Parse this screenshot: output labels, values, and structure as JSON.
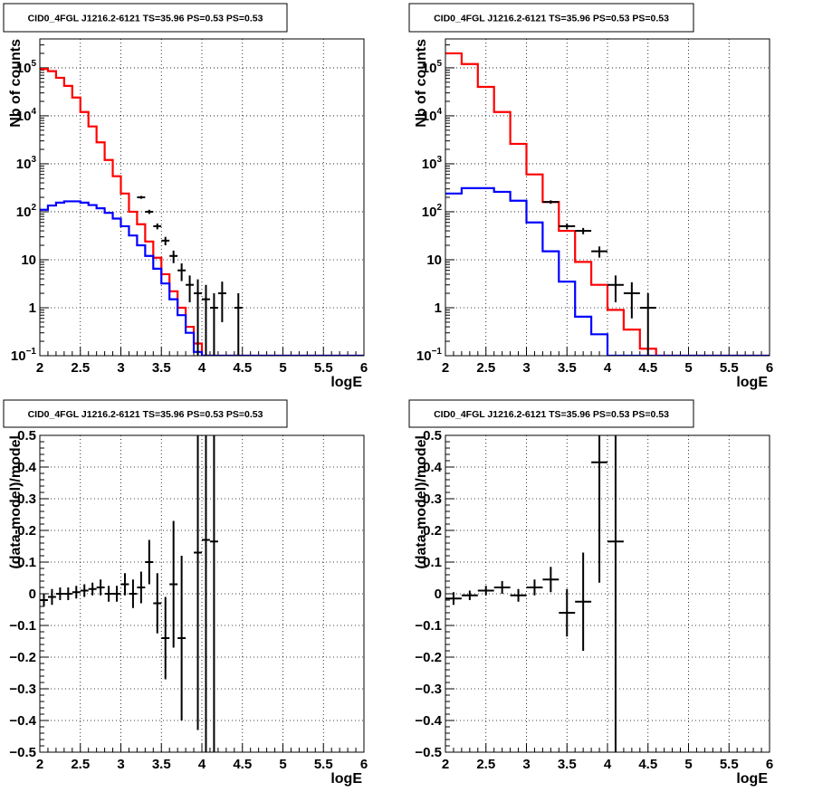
{
  "chart_data": [
    {
      "type": "line",
      "title": "CID0_4FGL J1216.2-6121 TS=35.96 PS=0.53 PS=0.53",
      "xlabel": "logE",
      "ylabel": "Nb of counts",
      "xlim": [
        2,
        6
      ],
      "ylim": [
        0.1,
        400000
      ],
      "yscale": "log",
      "grid": true,
      "x_ticks": [
        "2",
        "2.5",
        "3",
        "3.5",
        "4",
        "4.5",
        "5",
        "5.5",
        "6"
      ],
      "y_ticks": [
        {
          "value": 0.1,
          "label": "10",
          "sup": "−1"
        },
        {
          "value": 1,
          "label": "1",
          "sup": ""
        },
        {
          "value": 10,
          "label": "10",
          "sup": ""
        },
        {
          "value": 100,
          "label": "10",
          "sup": "2"
        },
        {
          "value": 1000,
          "label": "10",
          "sup": "3"
        },
        {
          "value": 10000,
          "label": "10",
          "sup": "4"
        },
        {
          "value": 100000,
          "label": "10",
          "sup": "5"
        }
      ],
      "bin_width": 0.1,
      "series": [
        {
          "color": "#ff0000",
          "kind": "hist",
          "edges_start": 2.0,
          "values": [
            95000,
            85000,
            62000,
            42000,
            24000,
            12000,
            6000,
            2800,
            1200,
            550,
            240,
            100,
            55,
            24,
            11,
            5,
            2.2,
            1.0,
            0.4,
            0.18,
            0.1,
            0.1,
            0.1,
            0.1,
            0.1,
            0.1,
            0.1,
            0.1,
            0.1,
            0.1,
            0.1,
            0.1,
            0.1,
            0.1,
            0.1,
            0.1,
            0.1,
            0.1,
            0.1,
            0.1
          ]
        },
        {
          "color": "#0000ff",
          "kind": "hist",
          "edges_start": 2.0,
          "values": [
            110,
            135,
            155,
            165,
            165,
            155,
            138,
            118,
            95,
            72,
            50,
            32,
            20,
            12,
            6.5,
            3.2,
            1.5,
            0.7,
            0.3,
            0.12,
            0.1,
            0.1,
            0.1,
            0.1,
            0.1,
            0.1,
            0.1,
            0.1,
            0.1,
            0.1,
            0.1,
            0.1,
            0.1,
            0.1,
            0.1,
            0.1,
            0.1,
            0.1,
            0.1,
            0.1
          ]
        },
        {
          "color": "#000000",
          "kind": "points",
          "x": [
            3.25,
            3.35,
            3.45,
            3.55,
            3.65,
            3.75,
            3.85,
            3.95,
            4.05,
            4.15,
            4.25,
            4.45
          ],
          "y": [
            200,
            100,
            50,
            25,
            12,
            6,
            3,
            2,
            1.5,
            1,
            2,
            1
          ],
          "err_lo": [
            14,
            10,
            7,
            5,
            3.5,
            2.4,
            1.7,
            1.9,
            1.5,
            1,
            1.5,
            1
          ],
          "err_hi": [
            14,
            10,
            7,
            5,
            3.5,
            2.4,
            1.7,
            1.9,
            1.5,
            1,
            1.5,
            1
          ]
        }
      ]
    },
    {
      "type": "line",
      "title": "CID0_4FGL J1216.2-6121 TS=35.96 PS=0.53 PS=0.53",
      "xlabel": "logE",
      "ylabel": "Nb of counts",
      "xlim": [
        2,
        6
      ],
      "ylim": [
        0.1,
        400000
      ],
      "yscale": "log",
      "grid": true,
      "x_ticks": [
        "2",
        "2.5",
        "3",
        "3.5",
        "4",
        "4.5",
        "5",
        "5.5",
        "6"
      ],
      "y_ticks": [
        {
          "value": 0.1,
          "label": "10",
          "sup": "−1"
        },
        {
          "value": 1,
          "label": "1",
          "sup": ""
        },
        {
          "value": 10,
          "label": "10",
          "sup": ""
        },
        {
          "value": 100,
          "label": "10",
          "sup": "2"
        },
        {
          "value": 1000,
          "label": "10",
          "sup": "3"
        },
        {
          "value": 10000,
          "label": "10",
          "sup": "4"
        },
        {
          "value": 100000,
          "label": "10",
          "sup": "5"
        }
      ],
      "bin_width": 0.2,
      "series": [
        {
          "color": "#ff0000",
          "kind": "hist",
          "edges_start": 2.0,
          "values": [
            200000,
            120000,
            40000,
            12000,
            2600,
            600,
            160,
            40,
            9,
            3,
            0.9,
            0.35,
            0.14,
            0.1,
            0.1,
            0.1,
            0.1,
            0.1,
            0.1,
            0.1
          ]
        },
        {
          "color": "#0000ff",
          "kind": "hist",
          "edges_start": 2.0,
          "values": [
            240,
            310,
            310,
            260,
            170,
            60,
            15,
            3.5,
            0.65,
            0.28,
            0.1,
            0.1,
            0.1,
            0.1,
            0.1,
            0.1,
            0.1,
            0.1,
            0.1,
            0.1
          ]
        },
        {
          "color": "#000000",
          "kind": "points",
          "x": [
            3.3,
            3.5,
            3.7,
            3.9,
            4.1,
            4.3,
            4.5
          ],
          "y": [
            160,
            50,
            40,
            15,
            3,
            2,
            1
          ],
          "err_lo": [
            13,
            7,
            6,
            3.9,
            1.7,
            1.4,
            1
          ],
          "err_hi": [
            13,
            7,
            6,
            3.9,
            1.7,
            1.4,
            1
          ]
        }
      ]
    },
    {
      "type": "scatter",
      "title": "CID0_4FGL J1216.2-6121 TS=35.96 PS=0.53 PS=0.53",
      "xlabel": "logE",
      "ylabel": "(data-model)/model",
      "xlim": [
        2,
        6
      ],
      "ylim": [
        -0.5,
        0.5
      ],
      "yscale": "linear",
      "grid": true,
      "x_ticks": [
        "2",
        "2.5",
        "3",
        "3.5",
        "4",
        "4.5",
        "5",
        "5.5",
        "6"
      ],
      "y_ticks": [
        {
          "value": -0.5,
          "label": "−0.5"
        },
        {
          "value": -0.4,
          "label": "−0.4"
        },
        {
          "value": -0.3,
          "label": "−0.3"
        },
        {
          "value": -0.2,
          "label": "−0.2"
        },
        {
          "value": -0.1,
          "label": "−0.1"
        },
        {
          "value": 0,
          "label": "0"
        },
        {
          "value": 0.1,
          "label": "0.1"
        },
        {
          "value": 0.2,
          "label": "0.2"
        },
        {
          "value": 0.3,
          "label": "0.3"
        },
        {
          "value": 0.4,
          "label": "0.4"
        },
        {
          "value": 0.5,
          "label": "0.5"
        }
      ],
      "series": [
        {
          "color": "#000000",
          "kind": "points",
          "half_width": 0.05,
          "x": [
            2.05,
            2.15,
            2.25,
            2.35,
            2.45,
            2.55,
            2.65,
            2.75,
            2.85,
            2.95,
            3.05,
            3.15,
            3.25,
            3.35,
            3.45,
            3.55,
            3.65,
            3.75,
            3.95,
            4.05,
            4.15
          ],
          "y": [
            -0.02,
            -0.01,
            0.0,
            0.0,
            0.005,
            0.01,
            0.015,
            0.02,
            0.0,
            0.0,
            0.03,
            0.0,
            0.02,
            0.1,
            -0.03,
            -0.14,
            0.03,
            -0.14,
            0.13,
            0.17,
            0.165
          ],
          "err_lo": [
            0.02,
            0.025,
            0.02,
            0.02,
            0.02,
            0.02,
            0.02,
            0.025,
            0.025,
            0.025,
            0.035,
            0.045,
            0.05,
            0.07,
            0.095,
            0.13,
            0.2,
            0.26,
            0.56,
            0.9,
            0.9
          ],
          "err_hi": [
            0.02,
            0.025,
            0.02,
            0.02,
            0.02,
            0.02,
            0.02,
            0.025,
            0.025,
            0.025,
            0.035,
            0.045,
            0.05,
            0.07,
            0.095,
            0.13,
            0.2,
            0.26,
            0.56,
            0.9,
            0.9
          ]
        }
      ]
    },
    {
      "type": "scatter",
      "title": "CID0_4FGL J1216.2-6121 TS=35.96 PS=0.53 PS=0.53",
      "xlabel": "logE",
      "ylabel": "(data-model)/model",
      "xlim": [
        2,
        6
      ],
      "ylim": [
        -0.5,
        0.5
      ],
      "yscale": "linear",
      "grid": true,
      "x_ticks": [
        "2",
        "2.5",
        "3",
        "3.5",
        "4",
        "4.5",
        "5",
        "5.5",
        "6"
      ],
      "y_ticks": [
        {
          "value": -0.5,
          "label": "−0.5"
        },
        {
          "value": -0.4,
          "label": "−0.4"
        },
        {
          "value": -0.3,
          "label": "−0.3"
        },
        {
          "value": -0.2,
          "label": "−0.2"
        },
        {
          "value": -0.1,
          "label": "−0.1"
        },
        {
          "value": 0,
          "label": "0"
        },
        {
          "value": 0.1,
          "label": "0.1"
        },
        {
          "value": 0.2,
          "label": "0.2"
        },
        {
          "value": 0.3,
          "label": "0.3"
        },
        {
          "value": 0.4,
          "label": "0.4"
        },
        {
          "value": 0.5,
          "label": "0.5"
        }
      ],
      "series": [
        {
          "color": "#000000",
          "kind": "points",
          "half_width": 0.1,
          "x": [
            2.1,
            2.3,
            2.5,
            2.7,
            2.9,
            3.1,
            3.3,
            3.5,
            3.7,
            3.9,
            4.1
          ],
          "y": [
            -0.015,
            -0.005,
            0.01,
            0.02,
            -0.005,
            0.02,
            0.045,
            -0.06,
            -0.025,
            0.415,
            0.165
          ],
          "err_lo": [
            0.02,
            0.015,
            0.015,
            0.02,
            0.02,
            0.025,
            0.04,
            0.075,
            0.155,
            0.38,
            0.9
          ],
          "err_hi": [
            0.02,
            0.015,
            0.015,
            0.02,
            0.02,
            0.025,
            0.04,
            0.075,
            0.155,
            0.38,
            0.9
          ]
        }
      ]
    }
  ]
}
